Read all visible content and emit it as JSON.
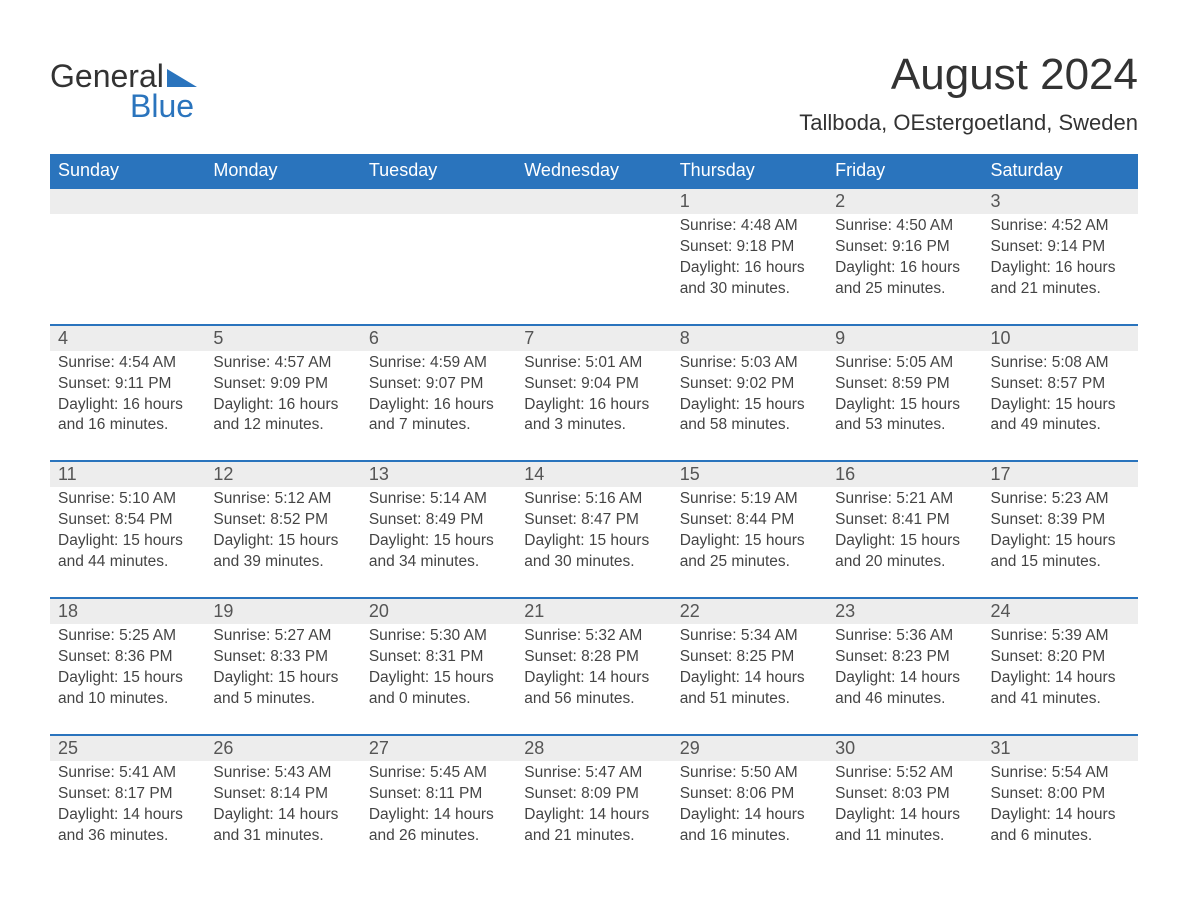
{
  "logo": {
    "general": "General",
    "blue": "Blue",
    "triangle_color": "#2a74bd"
  },
  "title": "August 2024",
  "location": "Tallboda, OEstergoetland, Sweden",
  "header_bg": "#2a74bd",
  "header_fg": "#ffffff",
  "daynum_bg": "#ededed",
  "row_border": "#2a74bd",
  "body_fg": "#444444",
  "weekdays": [
    "Sunday",
    "Monday",
    "Tuesday",
    "Wednesday",
    "Thursday",
    "Friday",
    "Saturday"
  ],
  "weeks": [
    [
      null,
      null,
      null,
      null,
      {
        "n": "1",
        "sr": "4:48 AM",
        "ss": "9:18 PM",
        "dh": "16",
        "dm": "30"
      },
      {
        "n": "2",
        "sr": "4:50 AM",
        "ss": "9:16 PM",
        "dh": "16",
        "dm": "25"
      },
      {
        "n": "3",
        "sr": "4:52 AM",
        "ss": "9:14 PM",
        "dh": "16",
        "dm": "21"
      }
    ],
    [
      {
        "n": "4",
        "sr": "4:54 AM",
        "ss": "9:11 PM",
        "dh": "16",
        "dm": "16"
      },
      {
        "n": "5",
        "sr": "4:57 AM",
        "ss": "9:09 PM",
        "dh": "16",
        "dm": "12"
      },
      {
        "n": "6",
        "sr": "4:59 AM",
        "ss": "9:07 PM",
        "dh": "16",
        "dm": "7"
      },
      {
        "n": "7",
        "sr": "5:01 AM",
        "ss": "9:04 PM",
        "dh": "16",
        "dm": "3"
      },
      {
        "n": "8",
        "sr": "5:03 AM",
        "ss": "9:02 PM",
        "dh": "15",
        "dm": "58"
      },
      {
        "n": "9",
        "sr": "5:05 AM",
        "ss": "8:59 PM",
        "dh": "15",
        "dm": "53"
      },
      {
        "n": "10",
        "sr": "5:08 AM",
        "ss": "8:57 PM",
        "dh": "15",
        "dm": "49"
      }
    ],
    [
      {
        "n": "11",
        "sr": "5:10 AM",
        "ss": "8:54 PM",
        "dh": "15",
        "dm": "44"
      },
      {
        "n": "12",
        "sr": "5:12 AM",
        "ss": "8:52 PM",
        "dh": "15",
        "dm": "39"
      },
      {
        "n": "13",
        "sr": "5:14 AM",
        "ss": "8:49 PM",
        "dh": "15",
        "dm": "34"
      },
      {
        "n": "14",
        "sr": "5:16 AM",
        "ss": "8:47 PM",
        "dh": "15",
        "dm": "30"
      },
      {
        "n": "15",
        "sr": "5:19 AM",
        "ss": "8:44 PM",
        "dh": "15",
        "dm": "25"
      },
      {
        "n": "16",
        "sr": "5:21 AM",
        "ss": "8:41 PM",
        "dh": "15",
        "dm": "20"
      },
      {
        "n": "17",
        "sr": "5:23 AM",
        "ss": "8:39 PM",
        "dh": "15",
        "dm": "15"
      }
    ],
    [
      {
        "n": "18",
        "sr": "5:25 AM",
        "ss": "8:36 PM",
        "dh": "15",
        "dm": "10"
      },
      {
        "n": "19",
        "sr": "5:27 AM",
        "ss": "8:33 PM",
        "dh": "15",
        "dm": "5"
      },
      {
        "n": "20",
        "sr": "5:30 AM",
        "ss": "8:31 PM",
        "dh": "15",
        "dm": "0"
      },
      {
        "n": "21",
        "sr": "5:32 AM",
        "ss": "8:28 PM",
        "dh": "14",
        "dm": "56"
      },
      {
        "n": "22",
        "sr": "5:34 AM",
        "ss": "8:25 PM",
        "dh": "14",
        "dm": "51"
      },
      {
        "n": "23",
        "sr": "5:36 AM",
        "ss": "8:23 PM",
        "dh": "14",
        "dm": "46"
      },
      {
        "n": "24",
        "sr": "5:39 AM",
        "ss": "8:20 PM",
        "dh": "14",
        "dm": "41"
      }
    ],
    [
      {
        "n": "25",
        "sr": "5:41 AM",
        "ss": "8:17 PM",
        "dh": "14",
        "dm": "36"
      },
      {
        "n": "26",
        "sr": "5:43 AM",
        "ss": "8:14 PM",
        "dh": "14",
        "dm": "31"
      },
      {
        "n": "27",
        "sr": "5:45 AM",
        "ss": "8:11 PM",
        "dh": "14",
        "dm": "26"
      },
      {
        "n": "28",
        "sr": "5:47 AM",
        "ss": "8:09 PM",
        "dh": "14",
        "dm": "21"
      },
      {
        "n": "29",
        "sr": "5:50 AM",
        "ss": "8:06 PM",
        "dh": "14",
        "dm": "16"
      },
      {
        "n": "30",
        "sr": "5:52 AM",
        "ss": "8:03 PM",
        "dh": "14",
        "dm": "11"
      },
      {
        "n": "31",
        "sr": "5:54 AM",
        "ss": "8:00 PM",
        "dh": "14",
        "dm": "6"
      }
    ]
  ]
}
